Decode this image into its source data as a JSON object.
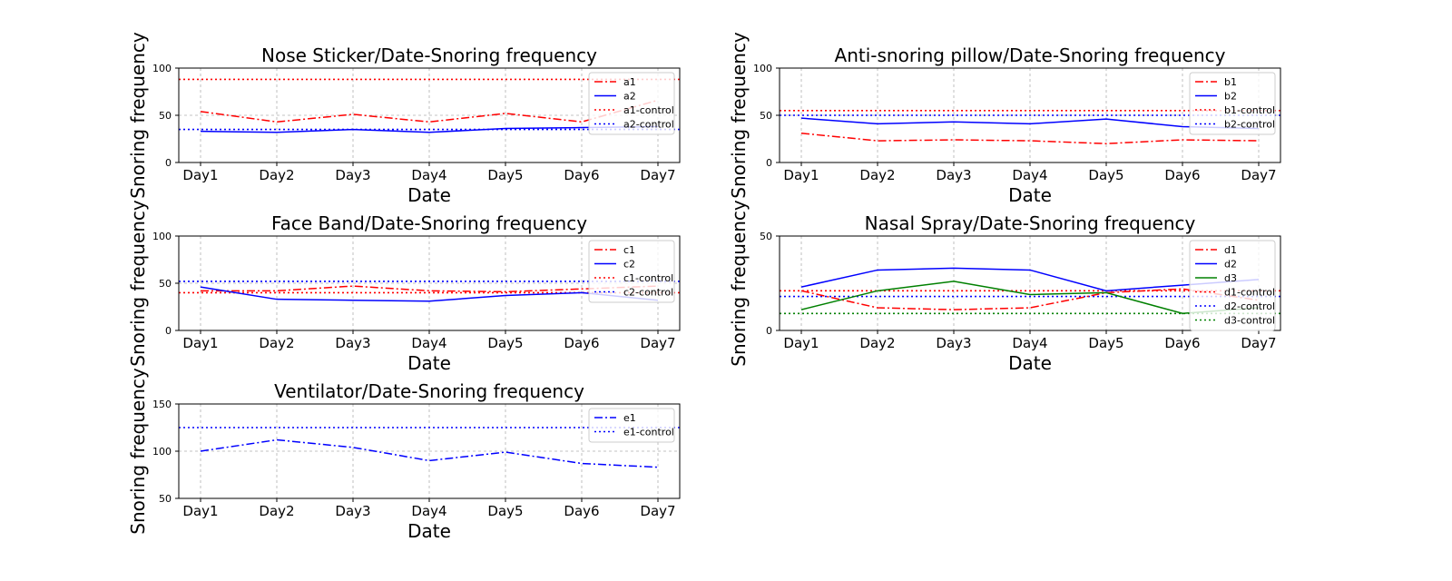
{
  "chart_data": [
    {
      "type": "line",
      "title": "Nose Sticker/Date-Snoring frequency",
      "xlabel": "Date",
      "ylabel": "Snoring frequency",
      "categories": [
        "Day1",
        "Day2",
        "Day3",
        "Day4",
        "Day5",
        "Day6",
        "Day7"
      ],
      "ylim": [
        0,
        100
      ],
      "yticks": [
        0,
        50,
        100
      ],
      "grid": true,
      "legend_position": "upper right",
      "series": [
        {
          "name": "a1",
          "color": "#ff0000",
          "style": "dashdot",
          "values": [
            54,
            43,
            51,
            43,
            52,
            43,
            66
          ]
        },
        {
          "name": "a2",
          "color": "#0000ff",
          "style": "solid",
          "values": [
            33,
            32,
            35,
            32,
            36,
            37,
            38
          ]
        }
      ],
      "controls": [
        {
          "name": "a1-control",
          "color": "#ff0000",
          "value": 88
        },
        {
          "name": "a2-control",
          "color": "#0000ff",
          "value": 35
        }
      ]
    },
    {
      "type": "line",
      "title": "Anti-snoring pillow/Date-Snoring frequency",
      "xlabel": "Date",
      "ylabel": "Snoring frequency",
      "categories": [
        "Day1",
        "Day2",
        "Day3",
        "Day4",
        "Day5",
        "Day6",
        "Day7"
      ],
      "ylim": [
        0,
        100
      ],
      "yticks": [
        0,
        50,
        100
      ],
      "grid": true,
      "legend_position": "upper right",
      "series": [
        {
          "name": "b1",
          "color": "#ff0000",
          "style": "dashdot",
          "values": [
            31,
            23,
            24,
            23,
            20,
            24,
            23
          ]
        },
        {
          "name": "b2",
          "color": "#0000ff",
          "style": "solid",
          "values": [
            47,
            41,
            43,
            41,
            46,
            38,
            36
          ]
        }
      ],
      "controls": [
        {
          "name": "b1-control",
          "color": "#ff0000",
          "value": 55
        },
        {
          "name": "b2-control",
          "color": "#0000ff",
          "value": 50
        }
      ]
    },
    {
      "type": "line",
      "title": "Face Band/Date-Snoring frequency",
      "xlabel": "Date",
      "ylabel": "Snoring frequency",
      "categories": [
        "Day1",
        "Day2",
        "Day3",
        "Day4",
        "Day5",
        "Day6",
        "Day7"
      ],
      "ylim": [
        0,
        100
      ],
      "yticks": [
        0,
        50,
        100
      ],
      "grid": true,
      "legend_position": "upper right",
      "series": [
        {
          "name": "c1",
          "color": "#ff0000",
          "style": "dashdot",
          "values": [
            42,
            42,
            47,
            42,
            41,
            44,
            47
          ]
        },
        {
          "name": "c2",
          "color": "#0000ff",
          "style": "solid",
          "values": [
            46,
            33,
            32,
            31,
            37,
            40,
            32
          ]
        }
      ],
      "controls": [
        {
          "name": "c1-control",
          "color": "#ff0000",
          "value": 40
        },
        {
          "name": "c2-control",
          "color": "#0000ff",
          "value": 52
        }
      ]
    },
    {
      "type": "line",
      "title": "Nasal Spray/Date-Snoring frequency",
      "xlabel": "Date",
      "ylabel": "Snoring frequency",
      "categories": [
        "Day1",
        "Day2",
        "Day3",
        "Day4",
        "Day5",
        "Day6",
        "Day7"
      ],
      "ylim": [
        0,
        50
      ],
      "yticks": [
        0,
        50
      ],
      "grid": true,
      "legend_position": "upper right",
      "series": [
        {
          "name": "d1",
          "color": "#ff0000",
          "style": "dashdot",
          "values": [
            21,
            12,
            11,
            12,
            20,
            22,
            16
          ]
        },
        {
          "name": "d2",
          "color": "#0000ff",
          "style": "solid",
          "values": [
            23,
            32,
            33,
            32,
            21,
            24,
            27
          ]
        },
        {
          "name": "d3",
          "color": "#008000",
          "style": "solid",
          "values": [
            11,
            21,
            26,
            19,
            20,
            9,
            12
          ]
        }
      ],
      "controls": [
        {
          "name": "d1-control",
          "color": "#ff0000",
          "value": 21
        },
        {
          "name": "d2-control",
          "color": "#0000ff",
          "value": 18
        },
        {
          "name": "d3-control",
          "color": "#008000",
          "value": 9
        }
      ]
    },
    {
      "type": "line",
      "title": "Ventilator/Date-Snoring frequency",
      "xlabel": "Date",
      "ylabel": "Snoring frequency",
      "categories": [
        "Day1",
        "Day2",
        "Day3",
        "Day4",
        "Day5",
        "Day6",
        "Day7"
      ],
      "ylim": [
        50,
        150
      ],
      "yticks": [
        50,
        100,
        150
      ],
      "grid": true,
      "legend_position": "upper right",
      "series": [
        {
          "name": "e1",
          "color": "#0000ff",
          "style": "dashdot",
          "values": [
            100,
            112,
            104,
            90,
            99,
            87,
            83
          ]
        }
      ],
      "controls": [
        {
          "name": "e1-control",
          "color": "#0000ff",
          "value": 125
        }
      ]
    }
  ]
}
